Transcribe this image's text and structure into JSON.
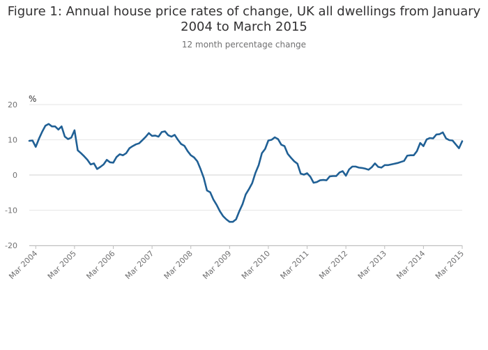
{
  "chart_data": {
    "type": "line",
    "title": "Figure 1: Annual house price rates of change, UK all dwellings from January 2004 to March 2015",
    "subtitle": "12 month percentage change",
    "ylabel": "%",
    "xlabel": "",
    "ylim": [
      -20,
      20
    ],
    "yticks": [
      20,
      10,
      0,
      -10,
      -20
    ],
    "xticks": [
      {
        "label": "Mar 2004",
        "index": 2
      },
      {
        "label": "Mar 2005",
        "index": 14
      },
      {
        "label": "Mar 2006",
        "index": 26
      },
      {
        "label": "Mar 2007",
        "index": 38
      },
      {
        "label": "Mar 2008",
        "index": 50
      },
      {
        "label": "Mar 2009",
        "index": 62
      },
      {
        "label": "Mar 2010",
        "index": 74
      },
      {
        "label": "Mar 2011",
        "index": 86
      },
      {
        "label": "Mar 2012",
        "index": 98
      },
      {
        "label": "Mar 2013",
        "index": 110
      },
      {
        "label": "Mar 2014",
        "index": 122
      },
      {
        "label": "Mar 2015",
        "index": 134
      }
    ],
    "grid": true,
    "series": [
      {
        "name": "UK all dwellings",
        "color": "#206095",
        "start": "Jan 2004",
        "values": [
          9.7,
          9.8,
          8.0,
          10.3,
          12.3,
          14.0,
          14.5,
          13.8,
          13.8,
          12.9,
          13.8,
          10.9,
          10.2,
          10.6,
          12.7,
          7.0,
          6.2,
          5.3,
          4.3,
          3.0,
          3.3,
          1.7,
          2.3,
          3.0,
          4.3,
          3.6,
          3.5,
          5.1,
          5.9,
          5.6,
          6.2,
          7.6,
          8.2,
          8.7,
          9.0,
          9.9,
          10.8,
          11.9,
          11.1,
          11.2,
          10.9,
          12.2,
          12.4,
          11.3,
          10.9,
          11.4,
          10.0,
          8.8,
          8.3,
          6.8,
          5.6,
          5.0,
          3.9,
          1.7,
          -0.8,
          -4.4,
          -4.9,
          -7.0,
          -8.5,
          -10.3,
          -11.7,
          -12.6,
          -13.3,
          -13.3,
          -12.6,
          -10.3,
          -8.3,
          -5.5,
          -4.0,
          -2.3,
          0.6,
          2.8,
          6.2,
          7.4,
          9.8,
          10.0,
          10.7,
          10.2,
          8.6,
          8.2,
          6.0,
          4.9,
          3.9,
          3.2,
          0.4,
          0.1,
          0.5,
          -0.5,
          -2.2,
          -2.0,
          -1.5,
          -1.4,
          -1.5,
          -0.4,
          -0.3,
          -0.3,
          0.7,
          1.1,
          -0.2,
          1.6,
          2.4,
          2.4,
          2.1,
          2.0,
          1.8,
          1.5,
          2.2,
          3.3,
          2.3,
          2.1,
          2.8,
          2.8,
          3.0,
          3.2,
          3.4,
          3.7,
          4.0,
          5.5,
          5.6,
          5.6,
          6.8,
          9.1,
          8.2,
          10.1,
          10.5,
          10.4,
          11.5,
          11.6,
          12.1,
          10.4,
          9.9,
          9.8,
          8.7,
          7.6,
          9.6
        ]
      }
    ]
  }
}
